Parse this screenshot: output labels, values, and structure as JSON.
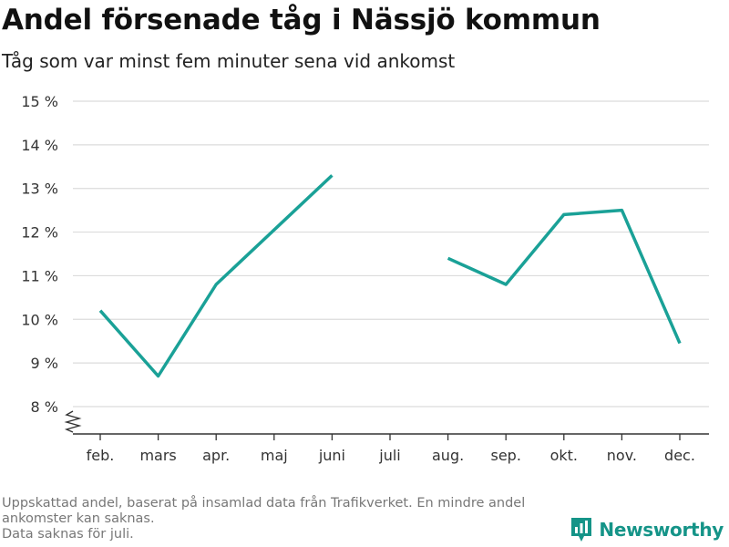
{
  "title": "Andel försenade tåg i Nässjö kommun",
  "subtitle": "Tåg som var minst fem minuter sena vid ankomst",
  "footnote": {
    "line1": "Uppskattad andel, baserat på insamlad data från Trafikverket. En mindre andel",
    "line2": "ankomster kan saknas.",
    "line3": "Data saknas för juli."
  },
  "brand": {
    "name": "Newsworthy",
    "icon": "newsworthy-logo-icon",
    "color": "#159488"
  },
  "chart_data": {
    "type": "line",
    "categories": [
      "feb.",
      "mars",
      "apr.",
      "maj",
      "juni",
      "juli",
      "aug.",
      "sep.",
      "okt.",
      "nov.",
      "dec."
    ],
    "series": [
      {
        "values": [
          10.2,
          8.7,
          10.8,
          12.05,
          13.3,
          null,
          11.4,
          10.8,
          12.4,
          12.5,
          9.45
        ]
      }
    ],
    "ylim": [
      8,
      15
    ],
    "yticks": [
      8,
      9,
      10,
      11,
      12,
      13,
      14,
      15
    ],
    "ytick_labels": [
      "8 %",
      "9 %",
      "10 %",
      "11 %",
      "12 %",
      "13 %",
      "14 %",
      "15 %"
    ],
    "axis_break": true,
    "grid": true,
    "line_color": "#1aa197",
    "xlabel": "",
    "ylabel": ""
  }
}
